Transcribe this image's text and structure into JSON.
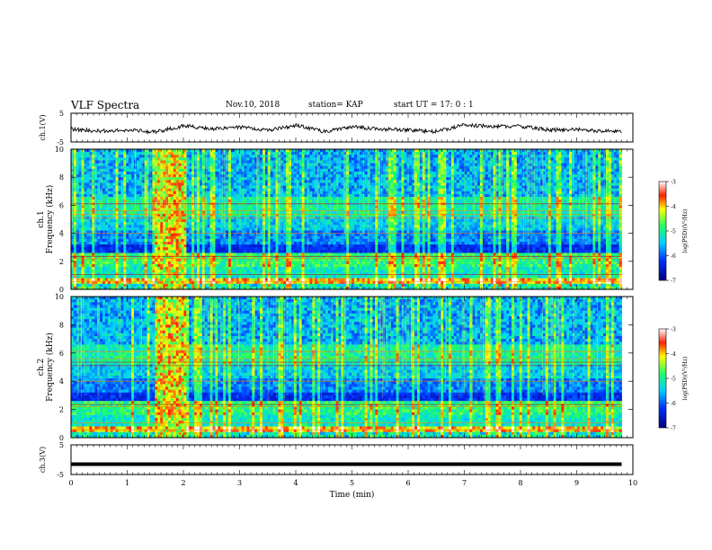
{
  "header": {
    "title": "VLF Spectra",
    "date": "Nov.10, 2018",
    "station": "station= KAP",
    "start": "start  UT =   17: 0  : 1"
  },
  "chart_data": [
    {
      "type": "line",
      "panel": "ch1-waveform",
      "ylabel": "ch.1(V)",
      "yticks": [
        "5",
        "-5"
      ],
      "ylim": [
        -5,
        5
      ],
      "xlim": [
        0,
        10
      ],
      "series": [
        {
          "x": [
            0,
            0.5,
            1,
            1.5,
            2,
            2.5,
            3,
            3.5,
            4,
            4.5,
            5,
            5.5,
            6,
            6.5,
            7,
            7.5,
            8,
            8.5,
            9,
            9.5,
            9.8
          ],
          "values": [
            -0.5,
            -1.2,
            -0.8,
            -1.5,
            0.6,
            -0.4,
            0.2,
            -1.0,
            0.8,
            -1.4,
            0.3,
            -0.5,
            -0.9,
            -1.3,
            0.9,
            0.4,
            0.5,
            -0.8,
            -0.7,
            -1.2,
            -1.4
          ]
        }
      ],
      "color": "#000000"
    },
    {
      "type": "heatmap",
      "panel": "ch1-spectrogram",
      "ylabel_line1": "ch.1",
      "ylabel_line2": "Frequency  (kHz)",
      "yticks": [
        "0",
        "2",
        "4",
        "6",
        "8",
        "10"
      ],
      "ylim": [
        0,
        10
      ],
      "xlim": [
        0,
        9.8
      ],
      "colorbar": {
        "label": "log(PSD)(V²/Hz)",
        "ticks": [
          "-3",
          "-4",
          "-5",
          "-6",
          "-7"
        ],
        "range": [
          -7,
          -3
        ]
      },
      "burst_interval_min": [
        1.5,
        2.05
      ]
    },
    {
      "type": "heatmap",
      "panel": "ch2-spectrogram",
      "ylabel_line1": "ch.2",
      "ylabel_line2": "Frequency  (kHz)",
      "yticks": [
        "0",
        "2",
        "4",
        "6",
        "8",
        "10"
      ],
      "ylim": [
        0,
        10
      ],
      "xlim": [
        0,
        9.8
      ],
      "colorbar": {
        "label": "log(PSD)(V²/Hz)",
        "ticks": [
          "-3",
          "-4",
          "-5",
          "-6",
          "-7"
        ],
        "range": [
          -7,
          -3
        ]
      },
      "burst_interval_min": [
        1.5,
        2.05
      ]
    },
    {
      "type": "line",
      "panel": "ch3-waveform",
      "ylabel": "ch.3(V)",
      "yticks": [
        "5",
        "-5"
      ],
      "ylim": [
        -5,
        5
      ],
      "xlim": [
        0,
        10
      ],
      "series": [
        {
          "x": [
            0,
            9.8
          ],
          "values": [
            -1.5,
            -1.5
          ]
        }
      ],
      "color": "#000000"
    }
  ],
  "xaxis": {
    "label": "Time  (min)",
    "ticks": [
      "0",
      "1",
      "2",
      "3",
      "4",
      "5",
      "6",
      "7",
      "8",
      "9",
      "10"
    ],
    "range": [
      0,
      10
    ]
  }
}
